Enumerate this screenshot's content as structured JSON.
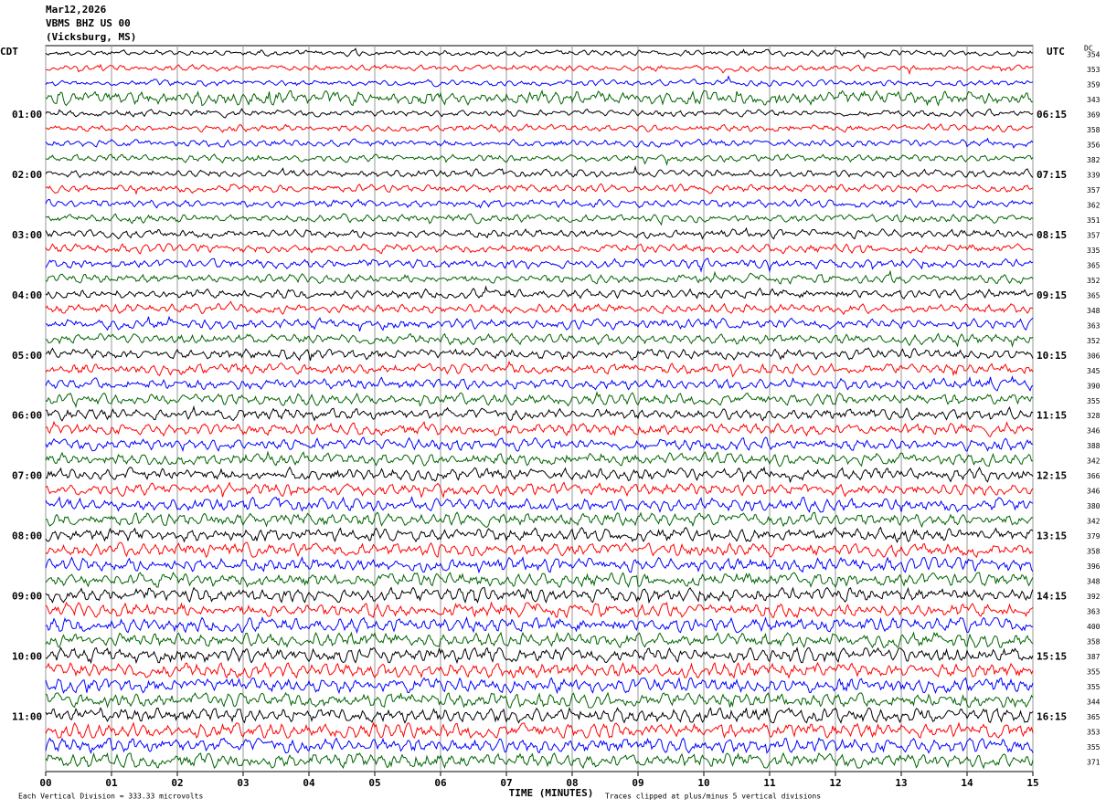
{
  "chart_data": {
    "type": "helicorder",
    "title": [
      "Mar12,2026",
      "VBMS BHZ US 00",
      "(Vicksburg, MS)"
    ],
    "left_axis_label": "CDT",
    "right_axis_label": "UTC",
    "dc_label": "DC",
    "xlabel": "TIME (MINUTES)",
    "xlim": [
      0,
      15
    ],
    "xticks": [
      {
        "value": 0,
        "label": "00"
      },
      {
        "value": 1,
        "label": "01"
      },
      {
        "value": 2,
        "label": "02"
      },
      {
        "value": 3,
        "label": "03"
      },
      {
        "value": 4,
        "label": "04"
      },
      {
        "value": 5,
        "label": "05"
      },
      {
        "value": 6,
        "label": "06"
      },
      {
        "value": 7,
        "label": "07"
      },
      {
        "value": 8,
        "label": "08"
      },
      {
        "value": 9,
        "label": "09"
      },
      {
        "value": 10,
        "label": "10"
      },
      {
        "value": 11,
        "label": "11"
      },
      {
        "value": 12,
        "label": "12"
      },
      {
        "value": 13,
        "label": "13"
      },
      {
        "value": 14,
        "label": "14"
      },
      {
        "value": 15,
        "label": "15"
      }
    ],
    "grid": true,
    "colors": [
      "#000000",
      "#ff0000",
      "#0000ff",
      "#006400"
    ],
    "left_labels": [
      null,
      null,
      null,
      null,
      "01:00",
      null,
      null,
      null,
      "02:00",
      null,
      null,
      null,
      "03:00",
      null,
      null,
      null,
      "04:00",
      null,
      null,
      null,
      "05:00",
      null,
      null,
      null,
      "06:00",
      null,
      null,
      null,
      "07:00",
      null,
      null,
      null,
      "08:00",
      null,
      null,
      null,
      "09:00",
      null,
      null,
      null,
      "10:00",
      null,
      null,
      null,
      "11:00",
      null,
      null,
      null
    ],
    "right_labels": [
      null,
      null,
      null,
      null,
      "06:15",
      null,
      null,
      null,
      "07:15",
      null,
      null,
      null,
      "08:15",
      null,
      null,
      null,
      "09:15",
      null,
      null,
      null,
      "10:15",
      null,
      null,
      null,
      "11:15",
      null,
      null,
      null,
      "12:15",
      null,
      null,
      null,
      "13:15",
      null,
      null,
      null,
      "14:15",
      null,
      null,
      null,
      "15:15",
      null,
      null,
      null,
      "16:15",
      null,
      null,
      null
    ],
    "dc_values": [
      354,
      353,
      359,
      343,
      369,
      358,
      356,
      382,
      339,
      357,
      362,
      351,
      357,
      335,
      365,
      352,
      365,
      348,
      363,
      352,
      306,
      345,
      390,
      355,
      328,
      346,
      388,
      342,
      366,
      346,
      380,
      342,
      379,
      358,
      396,
      348,
      392,
      363,
      400,
      358,
      387,
      355,
      355,
      344,
      365,
      353,
      355,
      371
    ],
    "footer_left": "Each Vertical Division =  333.33 microvolts",
    "footer_right": "Traces clipped at plus/minus 5 vertical divisions"
  }
}
